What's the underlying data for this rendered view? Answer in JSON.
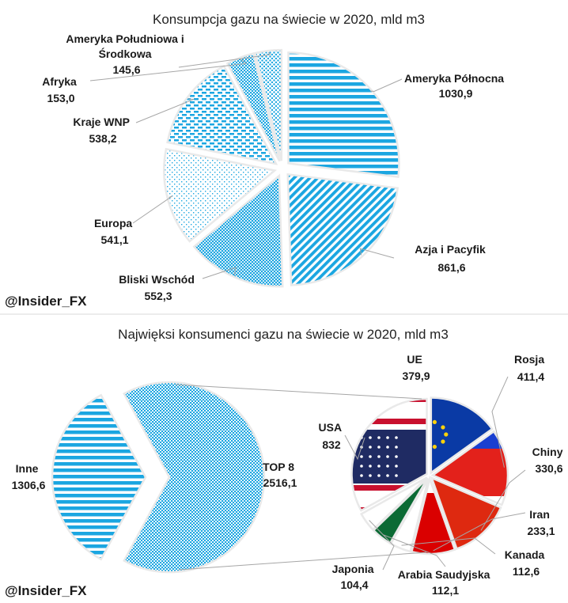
{
  "handle": "@Insider_FX",
  "colors": {
    "accent": "#1ba6e1",
    "light": "#ffffff",
    "border": "#e9e9e9",
    "leader": "#a6a6a6"
  },
  "chart_data": [
    {
      "type": "pie",
      "title": "Konsumpcja gazu na świecie w 2020, mld m3",
      "slices": [
        {
          "label": "Ameryka Północna",
          "value": 1030.9,
          "value_label": "1030,9",
          "pattern": "hstripes"
        },
        {
          "label": "Azja i Pacyfik",
          "value": 861.6,
          "value_label": "861,6",
          "pattern": "diagonal"
        },
        {
          "label": "Bliski Wschód",
          "value": 552.3,
          "value_label": "552,3",
          "pattern": "dense-dots"
        },
        {
          "label": "Europa",
          "value": 541.1,
          "value_label": "541,1",
          "pattern": "sparse-dots"
        },
        {
          "label": "Kraje WNP",
          "value": 538.2,
          "value_label": "538,2",
          "pattern": "brick"
        },
        {
          "label": "Afryka",
          "value": 153.0,
          "value_label": "153,0",
          "pattern": "checker"
        },
        {
          "label": "Ameryka Południowa i Środkowa",
          "label_lines": [
            "Ameryka Południowa i",
            "Środkowa"
          ],
          "value": 145.6,
          "value_label": "145,6",
          "pattern": "dots"
        }
      ]
    },
    {
      "type": "pie",
      "title": "Najwięksi konsumenci gazu na świecie w 2020, mld m3",
      "slices": [
        {
          "label": "TOP 8",
          "value": 2516.1,
          "value_label": "2516,1",
          "pattern": "checker"
        },
        {
          "label": "Inne",
          "value": 1306.6,
          "value_label": "1306,6",
          "pattern": "hstripes"
        }
      ],
      "breakdown": {
        "of": "TOP 8",
        "slices": [
          {
            "label": "UE",
            "value": 379.9,
            "value_label": "379,9",
            "flag": "eu-flag"
          },
          {
            "label": "Rosja",
            "value": 411.4,
            "value_label": "411,4",
            "flag": "russia-flag"
          },
          {
            "label": "Chiny",
            "value": 330.6,
            "value_label": "330,6",
            "flag": "china-flag"
          },
          {
            "label": "Iran",
            "value": 233.1,
            "value_label": "233,1",
            "flag": "iran-flag"
          },
          {
            "label": "Kanada",
            "value": 112.6,
            "value_label": "112,6",
            "flag": "canada-flag"
          },
          {
            "label": "Arabia Saudyjska",
            "value": 112.1,
            "value_label": "112,1",
            "flag": "saudi-flag"
          },
          {
            "label": "Japonia",
            "value": 104.4,
            "value_label": "104,4",
            "flag": "japan-flag"
          },
          {
            "label": "USA",
            "value": 832,
            "value_label": "832",
            "flag": "usa-flag"
          }
        ]
      }
    }
  ]
}
